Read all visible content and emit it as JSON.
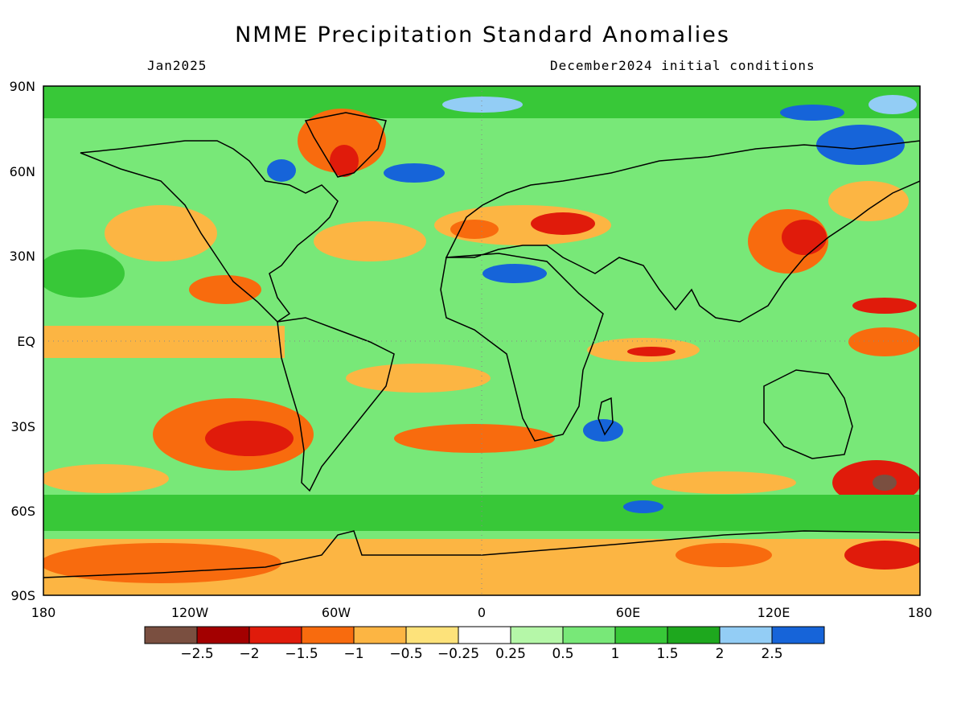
{
  "title": "NMME Precipitation Standard Anomalies",
  "valid_month": "Jan2025",
  "init_note": "December2024 initial conditions",
  "axes": {
    "lat_ticks": [
      "90N",
      "60N",
      "30N",
      "EQ",
      "30S",
      "60S",
      "90S"
    ],
    "lon_ticks": [
      "180",
      "120W",
      "60W",
      "0",
      "60E",
      "120E",
      "180"
    ]
  },
  "colorbar": {
    "colors": [
      "#7a4f40",
      "#a30000",
      "#e01b0b",
      "#f86b0e",
      "#fcb543",
      "#fde27a",
      "#ffffff",
      "#b5f7a8",
      "#78e878",
      "#38c838",
      "#1ea81e",
      "#93cdf5",
      "#1664d9"
    ],
    "labels": [
      "−2.5",
      "−2",
      "−1.5",
      "−1",
      "−0.5",
      "−0.25",
      "0.25",
      "0.5",
      "1",
      "1.5",
      "2",
      "2.5"
    ]
  },
  "colors": {
    "land_outline": "#000000",
    "frame": "#000000"
  }
}
